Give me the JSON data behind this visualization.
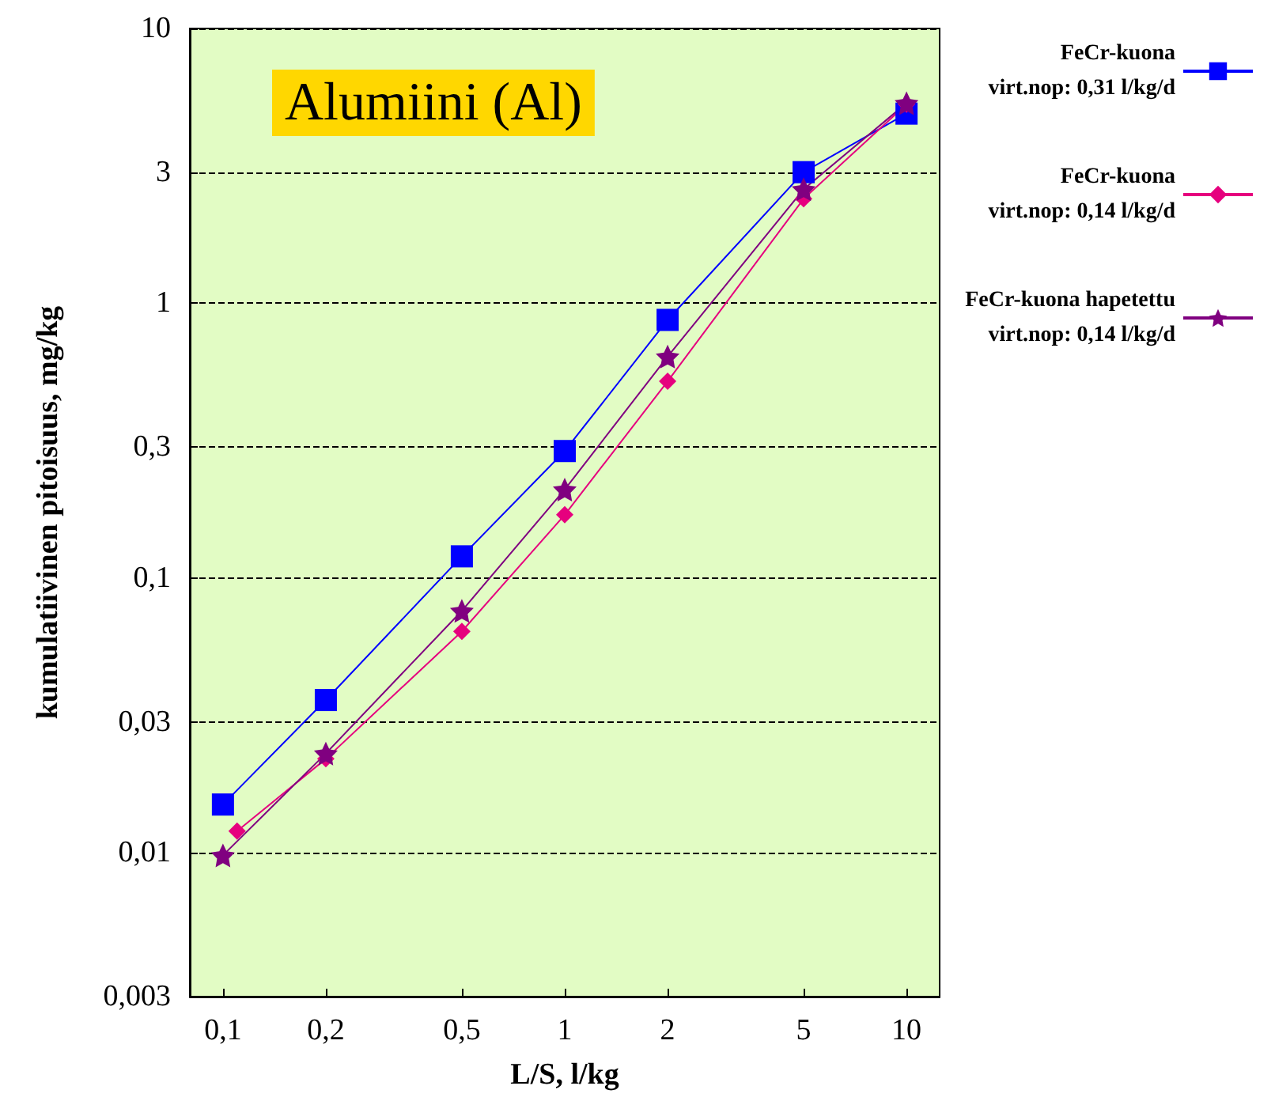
{
  "chart_data": {
    "type": "line",
    "title": "Alumiini (Al)",
    "xlabel": "L/S, l/kg",
    "ylabel": "kumulatiivinen pitoisuus, mg/kg",
    "log": "xy",
    "grid": "y",
    "legend": "top right",
    "line_style": "solid",
    "xlim": [
      0.08,
      12.5
    ],
    "xticks": [
      {
        "value": 0.1,
        "label": "0,1"
      },
      {
        "value": 0.2,
        "label": "0,2"
      },
      {
        "value": 0.5,
        "label": "0,5"
      },
      1,
      2,
      5,
      10
    ],
    "ylim": [
      0.003,
      10
    ],
    "yticks": [
      {
        "value": 0.003,
        "label": "0,003"
      },
      {
        "value": 0.01,
        "label": "0,01"
      },
      {
        "value": 0.03,
        "label": "0,03"
      },
      {
        "value": 0.1,
        "label": "0,1"
      },
      {
        "value": 0.3,
        "label": "0,3"
      },
      1,
      3,
      10
    ],
    "series": [
      {
        "name": "FeCr-kuona\nvirt.nop: 0,31 l/kg/d",
        "color": "#0000ff",
        "marker": "square",
        "x": [
          0.1,
          0.2,
          0.5,
          1,
          2,
          5,
          10
        ],
        "values": [
          0.015,
          0.036,
          0.12,
          0.29,
          0.87,
          3.0,
          4.9
        ]
      },
      {
        "name": "FeCr-kuona\nvirt.nop: 0,14 l/kg/d",
        "color": "#e6007e",
        "marker": "diamond",
        "x": [
          0.11,
          0.2,
          0.5,
          1,
          2,
          5,
          10
        ],
        "values": [
          0.012,
          0.022,
          0.064,
          0.17,
          0.52,
          2.4,
          5.3
        ]
      },
      {
        "name": "FeCr-kuona hapetettu\nvirt.nop: 0,14 l/kg/d",
        "color": "#800080",
        "marker": "star",
        "x": [
          0.1,
          0.2,
          0.5,
          1,
          2,
          5,
          10
        ],
        "values": [
          0.0098,
          0.023,
          0.076,
          0.21,
          0.64,
          2.6,
          5.35
        ]
      }
    ]
  }
}
